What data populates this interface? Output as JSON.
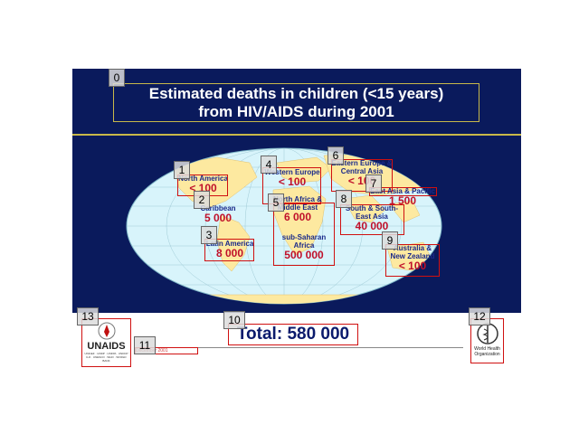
{
  "title": {
    "line1": "Estimated deaths in children (<15 years)",
    "line2": "from HIV/AIDS during 2001"
  },
  "regions": {
    "north_america": {
      "name": "North America",
      "value": "< 100"
    },
    "caribbean": {
      "name": "Caribbean",
      "value": "5 000"
    },
    "latin_america": {
      "name": "Latin America",
      "value": "8 000"
    },
    "western_europe": {
      "name": "Western Europe",
      "value": "< 100"
    },
    "north_africa": {
      "name": "North Africa & Middle East",
      "value": "6 000"
    },
    "sub_saharan": {
      "name": "sub-Saharan Africa",
      "value": "500 000"
    },
    "eastern_europe": {
      "name": "Eastern Europe & Central Asia",
      "value": "< 100"
    },
    "east_asia": {
      "name": "East Asia & Pacific",
      "value": "1 500"
    },
    "south_asia": {
      "name": "South & South-East Asia",
      "value": "40 000"
    },
    "australia": {
      "name": "Australia & New Zealand",
      "value": "< 100"
    }
  },
  "total": "Total: 580 000",
  "date_note": "December 2001",
  "logos": {
    "unaids": "UNAIDS",
    "unaids_sub": "UNICEF · UNDP · UNFPA · UNDCP ILO · UNESCO · WHO · WORLD BANK",
    "who": "World Health Organization"
  },
  "markers": [
    "0",
    "1",
    "2",
    "3",
    "4",
    "5",
    "6",
    "7",
    "8",
    "9",
    "10",
    "11",
    "12",
    "13"
  ],
  "colors": {
    "band": "#0a1a5c",
    "ocean": "#d8f4fb",
    "land": "#fde9a0",
    "value_red": "#c0102a",
    "name_blue": "#1a2a8a",
    "box_red": "#d01010"
  }
}
